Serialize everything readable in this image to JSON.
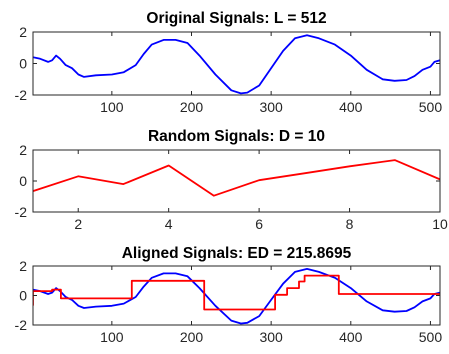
{
  "colors": {
    "blue": "#0000ff",
    "red": "#ff0000",
    "axis": "#262626"
  },
  "chart_data": [
    {
      "type": "line",
      "title": "Original Signals: L = 512",
      "xlim": [
        1,
        512
      ],
      "ylim": [
        -2,
        2
      ],
      "xticks": [
        100,
        200,
        300,
        400,
        500
      ],
      "yticks": [
        -2,
        0,
        2
      ],
      "grid": false,
      "series": [
        {
          "color": "#0000ff",
          "x": [
            1,
            10,
            20,
            25,
            30,
            35,
            42,
            50,
            58,
            65,
            80,
            100,
            115,
            130,
            140,
            150,
            165,
            180,
            195,
            210,
            230,
            250,
            262,
            270,
            285,
            300,
            315,
            330,
            345,
            360,
            380,
            400,
            420,
            440,
            455,
            470,
            480,
            490,
            500,
            505,
            512
          ],
          "y": [
            0.4,
            0.3,
            0.1,
            0.2,
            0.5,
            0.3,
            -0.1,
            -0.3,
            -0.7,
            -0.85,
            -0.75,
            -0.7,
            -0.55,
            -0.1,
            0.6,
            1.2,
            1.5,
            1.5,
            1.3,
            0.5,
            -0.7,
            -1.7,
            -1.9,
            -1.85,
            -1.4,
            -0.3,
            0.8,
            1.6,
            1.8,
            1.6,
            1.2,
            0.5,
            -0.4,
            -1.0,
            -1.1,
            -1.05,
            -0.8,
            -0.4,
            -0.2,
            0.1,
            0.2
          ]
        }
      ]
    },
    {
      "type": "line",
      "title": "Random Signals: D = 10",
      "xlim": [
        1,
        10
      ],
      "ylim": [
        -2,
        2
      ],
      "xticks": [
        2,
        4,
        6,
        8,
        10
      ],
      "yticks": [
        -2,
        0,
        2
      ],
      "grid": false,
      "series": [
        {
          "color": "#ff0000",
          "x": [
            1,
            2,
            3,
            4,
            5,
            6,
            7,
            8,
            9,
            10
          ],
          "y": [
            -0.65,
            0.3,
            -0.2,
            1.0,
            -0.95,
            0.05,
            0.5,
            0.95,
            1.35,
            0.1
          ]
        }
      ]
    },
    {
      "type": "line",
      "title": "Aligned Signals: ED = 215.8695",
      "xlim": [
        1,
        512
      ],
      "ylim": [
        -2,
        2
      ],
      "xticks": [
        100,
        200,
        300,
        400,
        500
      ],
      "yticks": [
        -2,
        0,
        2
      ],
      "grid": false,
      "series": [
        {
          "color": "#0000ff",
          "x": [
            1,
            10,
            20,
            25,
            30,
            35,
            42,
            50,
            58,
            65,
            80,
            100,
            115,
            130,
            140,
            150,
            165,
            180,
            195,
            210,
            230,
            250,
            262,
            270,
            285,
            300,
            315,
            330,
            345,
            360,
            380,
            400,
            420,
            440,
            455,
            470,
            480,
            490,
            500,
            505,
            512
          ],
          "y": [
            0.4,
            0.3,
            0.1,
            0.2,
            0.5,
            0.3,
            -0.1,
            -0.3,
            -0.7,
            -0.85,
            -0.75,
            -0.7,
            -0.55,
            -0.1,
            0.6,
            1.2,
            1.5,
            1.5,
            1.3,
            0.5,
            -0.7,
            -1.7,
            -1.9,
            -1.85,
            -1.4,
            -0.3,
            0.8,
            1.6,
            1.8,
            1.6,
            1.2,
            0.5,
            -0.4,
            -1.0,
            -1.1,
            -1.05,
            -0.8,
            -0.4,
            -0.2,
            0.1,
            0.2
          ]
        },
        {
          "color": "#ff0000",
          "step": true,
          "x": [
            1,
            2,
            25,
            26,
            35,
            36,
            125,
            126,
            216,
            217,
            305,
            306,
            340,
            341,
            385,
            386,
            512
          ],
          "y": [
            -0.65,
            0.3,
            0.3,
            0.4,
            0.4,
            -0.2,
            -0.2,
            1.0,
            1.0,
            -0.95,
            -0.95,
            0.05,
            0.5,
            1.35,
            1.35,
            0.1,
            0.1
          ],
          "segments": [
            {
              "x0": 1,
              "x1": 25,
              "y": 0.3
            },
            {
              "x0": 25,
              "x1": 36,
              "y": 0.4
            },
            {
              "x0": 36,
              "x1": 125,
              "y": -0.2
            },
            {
              "x0": 125,
              "x1": 216,
              "y": 1.0
            },
            {
              "x0": 216,
              "x1": 305,
              "y": -0.95
            },
            {
              "x0": 305,
              "x1": 320,
              "y": 0.05
            },
            {
              "x0": 320,
              "x1": 335,
              "y": 0.5
            },
            {
              "x0": 335,
              "x1": 342,
              "y": 0.95
            },
            {
              "x0": 342,
              "x1": 385,
              "y": 1.35
            },
            {
              "x0": 385,
              "x1": 512,
              "y": 0.1
            }
          ]
        }
      ]
    }
  ]
}
